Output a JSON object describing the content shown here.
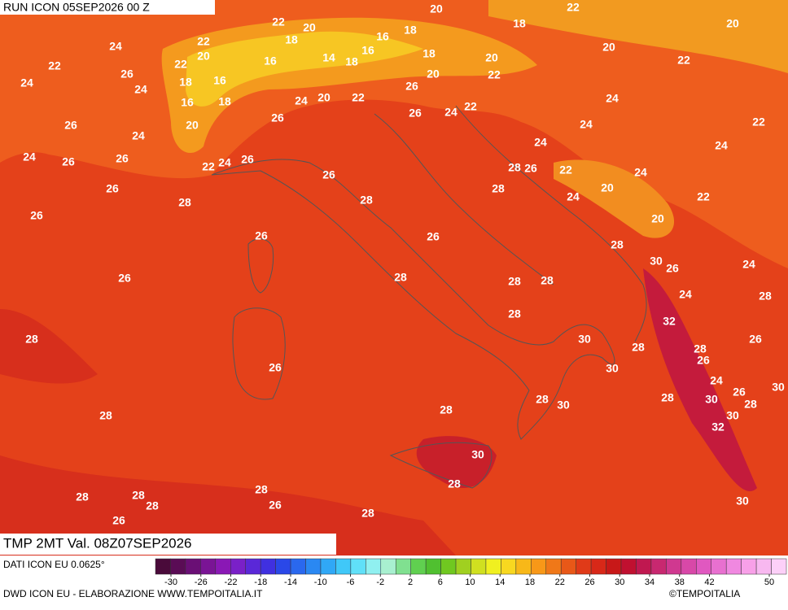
{
  "header": {
    "run": "RUN ICON 05SEP2026 00 Z",
    "field": "TMP 2MT Val. 08Z07SEP2026"
  },
  "footer": {
    "data_source": "DATI ICON EU 0.0625°",
    "credit": "DWD ICON EU - ELABORAZIONE WWW.TEMPOITALIA.IT",
    "brand": "©TEMPOITALIA"
  },
  "colorbar": {
    "ticks": [
      -30,
      -26,
      -22,
      -18,
      -14,
      -10,
      -6,
      -2,
      2,
      6,
      10,
      14,
      18,
      22,
      26,
      30,
      34,
      38,
      42,
      50
    ]
  },
  "map": {
    "labels": [
      22,
      20,
      22,
      20,
      22,
      18,
      16,
      18,
      18,
      20,
      24,
      20,
      22,
      16,
      14,
      18,
      16,
      18,
      20,
      20,
      22,
      22,
      26,
      18,
      16,
      20,
      22,
      24,
      24,
      26,
      16,
      18,
      24,
      20,
      22,
      24,
      22,
      24,
      26,
      26,
      26,
      20,
      24,
      22,
      24,
      24,
      24,
      24,
      26,
      26,
      26,
      24,
      22,
      28,
      26,
      22,
      24,
      26,
      26,
      28,
      20,
      24,
      22,
      28,
      28,
      26,
      20,
      26,
      26,
      28,
      30,
      26,
      24,
      26,
      28,
      28,
      28,
      24,
      28,
      28,
      32,
      28,
      30,
      26,
      28,
      28,
      26,
      26,
      30,
      24,
      30,
      26,
      28,
      30,
      28,
      30,
      28,
      28,
      28,
      30,
      32,
      30,
      28,
      28,
      28,
      28,
      28,
      30,
      26,
      26,
      28
    ]
  }
}
